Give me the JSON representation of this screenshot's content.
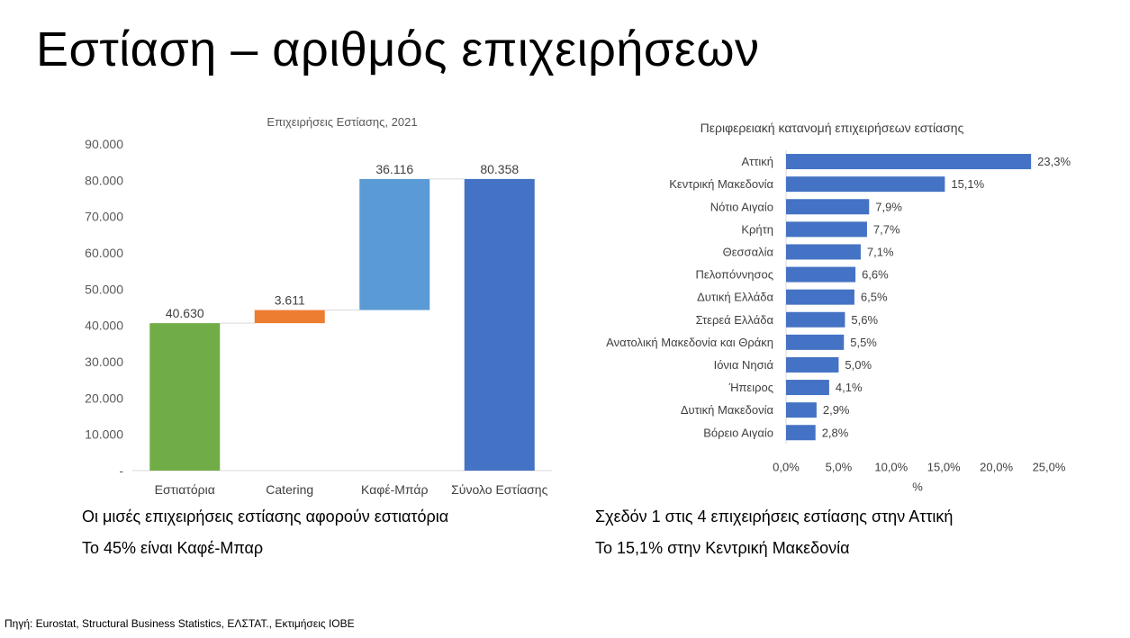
{
  "slide": {
    "title": "Εστίαση – αριθμός επιχειρήσεων",
    "source": "Πηγή: Eurostat, Structural Business Statistics, ΕΛΣΤΑΤ., Εκτιμήσεις ΙΟΒΕ"
  },
  "captions": {
    "left_line1": "Οι μισές επιχειρήσεις εστίασης αφορούν εστιατόρια",
    "left_line2": "Το 45% είναι Καφέ-Μπαρ",
    "right_line1": "Σχεδόν 1 στις 4 επιχειρήσεις εστίασης στην Αττική",
    "right_line2": "Το 15,1% στην Κεντρική Μακεδονία"
  },
  "chart_data": [
    {
      "type": "bar",
      "subtype": "waterfall",
      "title": "Επιχειρήσεις Εστίασης, 2021",
      "categories": [
        "Εστιατόρια",
        "Catering",
        "Καφέ-Μπάρ",
        "Σύνολο Εστίασης"
      ],
      "values": [
        40630,
        3611,
        36116,
        80358
      ],
      "data_labels": [
        "40.630",
        "3.611",
        "36.116",
        "80.358"
      ],
      "is_total": [
        false,
        false,
        false,
        true
      ],
      "colors": [
        "#70ad47",
        "#ed7d31",
        "#5b9bd5",
        "#4472c4"
      ],
      "ylim": [
        0,
        90000
      ],
      "yticks": [
        0,
        10000,
        20000,
        30000,
        40000,
        50000,
        60000,
        70000,
        80000,
        90000
      ],
      "ytick_labels": [
        "-",
        "10.000",
        "20.000",
        "30.000",
        "40.000",
        "50.000",
        "60.000",
        "70.000",
        "80.000",
        "90.000"
      ],
      "xlabel": "",
      "ylabel": "",
      "grid": false,
      "legend": "none"
    },
    {
      "type": "bar",
      "orientation": "horizontal",
      "title": "Περιφερειακή κατανομή επιχειρήσεων εστίασης",
      "categories": [
        "Αττική",
        "Κεντρική Μακεδονία",
        "Νότιο Αιγαίο",
        "Κρήτη",
        "Θεσσαλία",
        "Πελοπόννησος",
        "Δυτική Ελλάδα",
        "Στερεά Ελλάδα",
        "Ανατολική Μακεδονία και Θράκη",
        "Ιόνια Νησιά",
        "Ήπειρος",
        "Δυτική Μακεδονία",
        "Βόρειο Αιγαίο"
      ],
      "values": [
        23.3,
        15.1,
        7.9,
        7.7,
        7.1,
        6.6,
        6.5,
        5.6,
        5.5,
        5.0,
        4.1,
        2.9,
        2.8
      ],
      "data_labels": [
        "23,3%",
        "15,1%",
        "7,9%",
        "7,7%",
        "7,1%",
        "6,6%",
        "6,5%",
        "5,6%",
        "5,5%",
        "5,0%",
        "4,1%",
        "2,9%",
        "2,8%"
      ],
      "color": "#4472c4",
      "xlim": [
        0,
        25
      ],
      "xticks": [
        0,
        5,
        10,
        15,
        20,
        25
      ],
      "xtick_labels": [
        "0,0%",
        "5,0%",
        "10,0%",
        "15,0%",
        "20,0%",
        "25,0%"
      ],
      "xlabel": "%",
      "ylabel": "",
      "grid": false,
      "legend": "none"
    }
  ]
}
